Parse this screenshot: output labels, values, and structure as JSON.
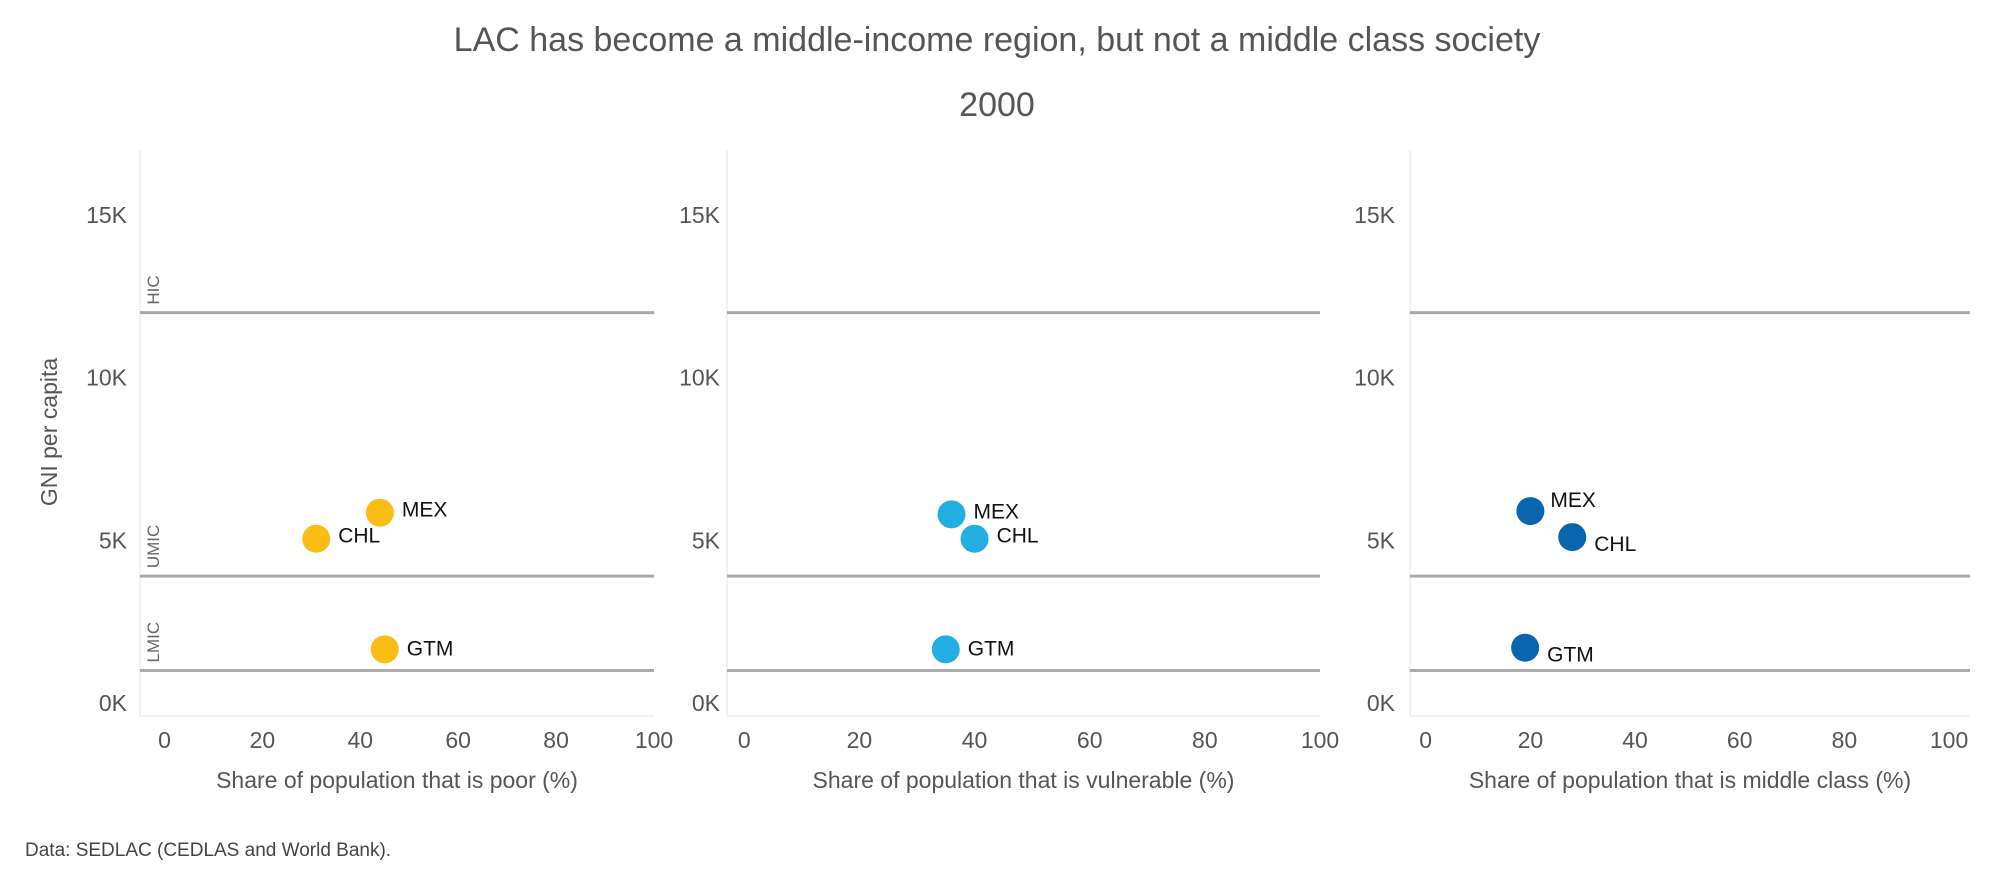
{
  "title": "LAC has become a middle-income region, but not a middle class society",
  "subtitle": "2000",
  "source": "Data: SEDLAC (CEDLAS and World Bank).",
  "ylabel": "GNI per capita",
  "colors": {
    "poor": "#FBBC15",
    "vulnerable": "#22AEE0",
    "middle": "#0865AE",
    "threshold": "#AAAAAA"
  },
  "chart_data": [
    {
      "type": "scatter",
      "xlabel": "Share of population that is poor (%)",
      "ylabel": "GNI per capita",
      "xlim": [
        -5,
        100
      ],
      "ylim": [
        -400,
        17000
      ],
      "xticks": [
        "0",
        "20",
        "40",
        "60",
        "80",
        "100"
      ],
      "yticks": [
        "0K",
        "5K",
        "10K",
        "15K"
      ],
      "thresholds": [
        12000,
        3900,
        1000
      ],
      "bands": [
        "HIC",
        "UMIC",
        "LMIC"
      ],
      "points": [
        {
          "label": "MEX",
          "x": 44,
          "y": 5850
        },
        {
          "label": "CHL",
          "x": 31,
          "y": 5050
        },
        {
          "label": "GTM",
          "x": 45,
          "y": 1650
        }
      ]
    },
    {
      "type": "scatter",
      "xlabel": "Share of population that is vulnerable (%)",
      "ylabel": "GNI per capita",
      "xlim": [
        -3,
        100
      ],
      "ylim": [
        -400,
        17000
      ],
      "xticks": [
        "0",
        "20",
        "40",
        "60",
        "80",
        "100"
      ],
      "yticks": [
        "0K",
        "5K",
        "10K",
        "15K"
      ],
      "thresholds": [
        12000,
        3900,
        1000
      ],
      "points": [
        {
          "label": "MEX",
          "x": 36,
          "y": 5800
        },
        {
          "label": "CHL",
          "x": 40,
          "y": 5050
        },
        {
          "label": "GTM",
          "x": 35,
          "y": 1650
        }
      ]
    },
    {
      "type": "scatter",
      "xlabel": "Share of population that is middle class (%)",
      "ylabel": "GNI per capita",
      "xlim": [
        -3,
        104
      ],
      "ylim": [
        -400,
        17000
      ],
      "xticks": [
        "0",
        "20",
        "40",
        "60",
        "80",
        "100"
      ],
      "yticks": [
        "0K",
        "5K",
        "10K",
        "15K"
      ],
      "thresholds": [
        12000,
        3900,
        1000
      ],
      "points": [
        {
          "label": "MEX",
          "x": 20,
          "y": 5900
        },
        {
          "label": "CHL",
          "x": 28,
          "y": 5100
        },
        {
          "label": "GTM",
          "x": 19,
          "y": 1700
        }
      ]
    }
  ]
}
